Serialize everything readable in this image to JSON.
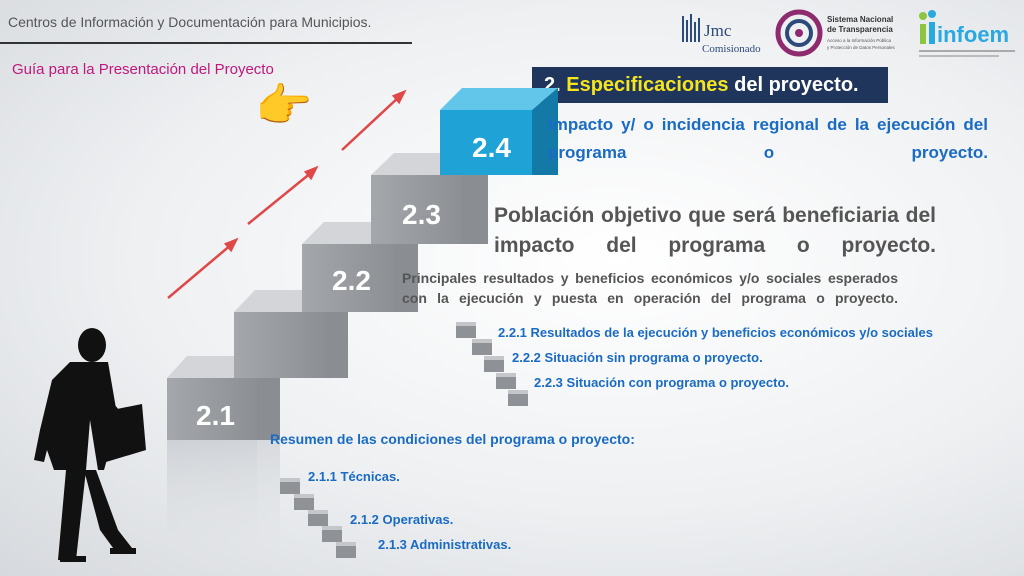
{
  "header": {
    "title": "Centros de Información y Documentación para Municipios.",
    "subtitle": "Guía para la Presentación del Proyecto"
  },
  "logos": {
    "jmc": {
      "name": "Jmc",
      "tagline": "Comisionado"
    },
    "snt": {
      "line1": "Sistema Nacional",
      "line2": "de Transparencia",
      "line3": "Acceso a la Información Pública",
      "line4": "y Protección de Datos Personales"
    },
    "infoem": {
      "name": "infoem"
    }
  },
  "section": {
    "prefix": "2. ",
    "highlight": "Especificaciones",
    "suffix": " del proyecto."
  },
  "steps": {
    "s24": {
      "label": "2.4",
      "text": "Impacto y/ o incidencia regional de la ejecución del programa o proyecto."
    },
    "s23": {
      "label": "2.3",
      "text": "Población objetivo que será beneficiaria del impacto del programa o proyecto."
    },
    "s22": {
      "label": "2.2",
      "text": "Principales resultados y beneficios económicos y/o sociales esperados con la ejecución y puesta en operación del programa o proyecto.",
      "items": [
        "2.2.1 Resultados de la ejecución y beneficios económicos y/o sociales",
        "2.2.2 Situación sin programa o proyecto.",
        "2.2.3 Situación con programa o proyecto."
      ]
    },
    "s21": {
      "label": "2.1",
      "text": "Resumen de las condiciones del programa o proyecto:",
      "items": [
        "2.1.1 Técnicas.",
        "2.1.2 Operativas.",
        "2.1.3 Administrativas."
      ]
    }
  },
  "icons": [
    "pointing-hand-icon",
    "businessman-silhouette",
    "red-arrow-icon"
  ],
  "colors": {
    "accent_blue": "#1a6bc4",
    "box_navy": "#1f355c",
    "highlight_yellow": "#f5e51f",
    "subtitle_magenta": "#c0187c",
    "cube_cyan": "#1fa3d6"
  }
}
